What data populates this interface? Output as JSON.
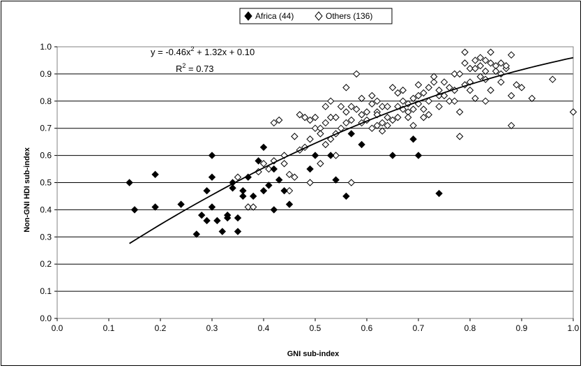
{
  "chart_data": {
    "type": "scatter",
    "xlabel": "GNI sub-index",
    "ylabel": "Non-GNI HDI sub-index",
    "xlim": [
      0.0,
      1.0
    ],
    "ylim": [
      0.0,
      1.0
    ],
    "x_ticks": [
      "0.0",
      "0.1",
      "0.2",
      "0.3",
      "0.4",
      "0.5",
      "0.6",
      "0.7",
      "0.8",
      "0.9",
      "1.0"
    ],
    "y_ticks": [
      "0.0",
      "0.1",
      "0.2",
      "0.3",
      "0.4",
      "0.5",
      "0.6",
      "0.7",
      "0.8",
      "0.9",
      "1.0"
    ],
    "grid": "horizontal",
    "legend_position": "top-center",
    "annotations": {
      "equation": "y = -0.46x",
      "equation_sup": "2",
      "equation_rest": " + 1.32x + 0.10",
      "r2_prefix": "R",
      "r2_sup": "2",
      "r2_rest": " = 0.73"
    },
    "trendline": {
      "a": -0.46,
      "b": 1.32,
      "c": 0.1,
      "x_range": [
        0.14,
        1.0
      ]
    },
    "series": [
      {
        "name": "Africa (44)",
        "marker": "filled-diamond",
        "points": [
          [
            0.14,
            0.5
          ],
          [
            0.15,
            0.4
          ],
          [
            0.19,
            0.41
          ],
          [
            0.19,
            0.53
          ],
          [
            0.24,
            0.42
          ],
          [
            0.27,
            0.31
          ],
          [
            0.28,
            0.38
          ],
          [
            0.29,
            0.47
          ],
          [
            0.29,
            0.36
          ],
          [
            0.3,
            0.52
          ],
          [
            0.3,
            0.41
          ],
          [
            0.3,
            0.6
          ],
          [
            0.31,
            0.36
          ],
          [
            0.32,
            0.32
          ],
          [
            0.33,
            0.38
          ],
          [
            0.33,
            0.37
          ],
          [
            0.34,
            0.5
          ],
          [
            0.34,
            0.48
          ],
          [
            0.35,
            0.37
          ],
          [
            0.35,
            0.32
          ],
          [
            0.36,
            0.47
          ],
          [
            0.36,
            0.45
          ],
          [
            0.37,
            0.52
          ],
          [
            0.38,
            0.45
          ],
          [
            0.39,
            0.58
          ],
          [
            0.4,
            0.63
          ],
          [
            0.4,
            0.47
          ],
          [
            0.41,
            0.49
          ],
          [
            0.42,
            0.4
          ],
          [
            0.42,
            0.55
          ],
          [
            0.43,
            0.51
          ],
          [
            0.44,
            0.47
          ],
          [
            0.45,
            0.42
          ],
          [
            0.49,
            0.55
          ],
          [
            0.5,
            0.6
          ],
          [
            0.53,
            0.6
          ],
          [
            0.54,
            0.51
          ],
          [
            0.56,
            0.45
          ],
          [
            0.57,
            0.68
          ],
          [
            0.59,
            0.64
          ],
          [
            0.65,
            0.6
          ],
          [
            0.69,
            0.66
          ],
          [
            0.7,
            0.6
          ],
          [
            0.74,
            0.46
          ]
        ]
      },
      {
        "name": "Others (136)",
        "marker": "open-diamond",
        "points": [
          [
            0.35,
            0.52
          ],
          [
            0.37,
            0.41
          ],
          [
            0.38,
            0.41
          ],
          [
            0.39,
            0.54
          ],
          [
            0.4,
            0.57
          ],
          [
            0.41,
            0.55
          ],
          [
            0.42,
            0.58
          ],
          [
            0.42,
            0.72
          ],
          [
            0.43,
            0.73
          ],
          [
            0.44,
            0.57
          ],
          [
            0.45,
            0.47
          ],
          [
            0.45,
            0.53
          ],
          [
            0.46,
            0.67
          ],
          [
            0.47,
            0.75
          ],
          [
            0.48,
            0.63
          ],
          [
            0.48,
            0.74
          ],
          [
            0.49,
            0.5
          ],
          [
            0.49,
            0.73
          ],
          [
            0.5,
            0.7
          ],
          [
            0.5,
            0.74
          ],
          [
            0.51,
            0.57
          ],
          [
            0.51,
            0.7
          ],
          [
            0.52,
            0.72
          ],
          [
            0.52,
            0.78
          ],
          [
            0.53,
            0.66
          ],
          [
            0.53,
            0.8
          ],
          [
            0.54,
            0.6
          ],
          [
            0.54,
            0.68
          ],
          [
            0.55,
            0.78
          ],
          [
            0.56,
            0.76
          ],
          [
            0.56,
            0.85
          ],
          [
            0.57,
            0.5
          ],
          [
            0.57,
            0.73
          ],
          [
            0.57,
            0.78
          ],
          [
            0.58,
            0.9
          ],
          [
            0.59,
            0.72
          ],
          [
            0.59,
            0.81
          ],
          [
            0.6,
            0.76
          ],
          [
            0.61,
            0.82
          ],
          [
            0.61,
            0.7
          ],
          [
            0.62,
            0.76
          ],
          [
            0.62,
            0.8
          ],
          [
            0.63,
            0.72
          ],
          [
            0.63,
            0.78
          ],
          [
            0.64,
            0.74
          ],
          [
            0.64,
            0.78
          ],
          [
            0.65,
            0.85
          ],
          [
            0.66,
            0.78
          ],
          [
            0.66,
            0.83
          ],
          [
            0.67,
            0.84
          ],
          [
            0.67,
            0.8
          ],
          [
            0.68,
            0.76
          ],
          [
            0.68,
            0.79
          ],
          [
            0.69,
            0.81
          ],
          [
            0.69,
            0.71
          ],
          [
            0.7,
            0.86
          ],
          [
            0.7,
            0.79
          ],
          [
            0.71,
            0.83
          ],
          [
            0.71,
            0.77
          ],
          [
            0.72,
            0.85
          ],
          [
            0.72,
            0.8
          ],
          [
            0.73,
            0.87
          ],
          [
            0.73,
            0.89
          ],
          [
            0.74,
            0.82
          ],
          [
            0.74,
            0.84
          ],
          [
            0.75,
            0.87
          ],
          [
            0.76,
            0.85
          ],
          [
            0.77,
            0.9
          ],
          [
            0.77,
            0.84
          ],
          [
            0.78,
            0.67
          ],
          [
            0.78,
            0.76
          ],
          [
            0.78,
            0.9
          ],
          [
            0.79,
            0.94
          ],
          [
            0.79,
            0.98
          ],
          [
            0.8,
            0.87
          ],
          [
            0.8,
            0.92
          ],
          [
            0.81,
            0.95
          ],
          [
            0.81,
            0.81
          ],
          [
            0.82,
            0.96
          ],
          [
            0.82,
            0.93
          ],
          [
            0.83,
            0.91
          ],
          [
            0.83,
            0.95
          ],
          [
            0.83,
            0.88
          ],
          [
            0.84,
            0.94
          ],
          [
            0.84,
            0.98
          ],
          [
            0.84,
            0.84
          ],
          [
            0.85,
            0.93
          ],
          [
            0.86,
            0.9
          ],
          [
            0.86,
            0.94
          ],
          [
            0.87,
            0.92
          ],
          [
            0.88,
            0.82
          ],
          [
            0.88,
            0.71
          ],
          [
            0.88,
            0.97
          ],
          [
            0.89,
            0.86
          ],
          [
            0.9,
            0.85
          ],
          [
            0.92,
            0.81
          ],
          [
            0.96,
            0.88
          ],
          [
            1.0,
            0.76
          ],
          [
            0.46,
            0.52
          ],
          [
            0.53,
            0.74
          ],
          [
            0.55,
            0.7
          ],
          [
            0.6,
            0.73
          ],
          [
            0.62,
            0.75
          ],
          [
            0.65,
            0.73
          ],
          [
            0.67,
            0.77
          ],
          [
            0.71,
            0.74
          ],
          [
            0.74,
            0.78
          ],
          [
            0.75,
            0.82
          ],
          [
            0.76,
            0.8
          ],
          [
            0.8,
            0.84
          ],
          [
            0.82,
            0.89
          ],
          [
            0.85,
            0.91
          ],
          [
            0.87,
            0.93
          ],
          [
            0.63,
            0.69
          ],
          [
            0.58,
            0.77
          ],
          [
            0.54,
            0.74
          ],
          [
            0.51,
            0.68
          ],
          [
            0.49,
            0.66
          ],
          [
            0.47,
            0.62
          ],
          [
            0.56,
            0.72
          ],
          [
            0.61,
            0.79
          ],
          [
            0.66,
            0.74
          ],
          [
            0.69,
            0.77
          ],
          [
            0.72,
            0.75
          ],
          [
            0.79,
            0.86
          ],
          [
            0.81,
            0.92
          ],
          [
            0.83,
            0.8
          ],
          [
            0.86,
            0.87
          ],
          [
            0.64,
            0.71
          ],
          [
            0.59,
            0.75
          ],
          [
            0.52,
            0.64
          ],
          [
            0.44,
            0.6
          ],
          [
            0.77,
            0.8
          ],
          [
            0.7,
            0.82
          ],
          [
            0.62,
            0.71
          ],
          [
            0.68,
            0.74
          ]
        ]
      }
    ]
  }
}
